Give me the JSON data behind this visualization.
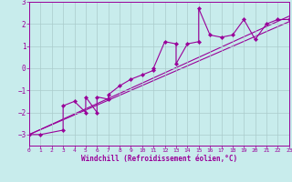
{
  "xlabel": "Windchill (Refroidissement éolien,°C)",
  "bg_color": "#c8ecec",
  "line_color": "#990099",
  "grid_color": "#aacccc",
  "xlim": [
    0,
    23
  ],
  "ylim": [
    -3.5,
    3.0
  ],
  "yticks": [
    -3,
    -2,
    -1,
    0,
    1,
    2,
    3
  ],
  "xticks": [
    0,
    1,
    2,
    3,
    4,
    5,
    6,
    7,
    8,
    9,
    10,
    11,
    12,
    13,
    14,
    15,
    16,
    17,
    18,
    19,
    20,
    21,
    22,
    23
  ],
  "series": [
    [
      0,
      -3.0
    ],
    [
      1,
      -3.0
    ],
    [
      3,
      -2.8
    ],
    [
      3,
      -1.7
    ],
    [
      4,
      -1.5
    ],
    [
      5,
      -2.0
    ],
    [
      5,
      -1.3
    ],
    [
      6,
      -2.0
    ],
    [
      6,
      -1.3
    ],
    [
      7,
      -1.4
    ],
    [
      7,
      -1.2
    ],
    [
      8,
      -0.8
    ],
    [
      9,
      -0.5
    ],
    [
      10,
      -0.3
    ],
    [
      11,
      -0.1
    ],
    [
      11,
      0.0
    ],
    [
      12,
      1.2
    ],
    [
      13,
      1.1
    ],
    [
      13,
      0.2
    ],
    [
      14,
      1.1
    ],
    [
      15,
      1.2
    ],
    [
      15,
      2.7
    ],
    [
      16,
      1.5
    ],
    [
      17,
      1.4
    ],
    [
      18,
      1.5
    ],
    [
      19,
      2.2
    ],
    [
      20,
      1.3
    ],
    [
      21,
      2.0
    ],
    [
      22,
      2.2
    ],
    [
      23,
      2.2
    ]
  ],
  "linear_line1": [
    [
      0,
      -3.0
    ],
    [
      23,
      2.1
    ]
  ],
  "linear_line2": [
    [
      0,
      -3.0
    ],
    [
      23,
      2.35
    ]
  ]
}
